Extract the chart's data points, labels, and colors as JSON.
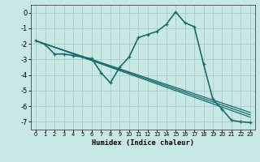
{
  "xlabel": "Humidex (Indice chaleur)",
  "background_color": "#c8e8e6",
  "line_color": "#1a6b6b",
  "xlim": [
    -0.5,
    23.5
  ],
  "ylim": [
    -7.5,
    0.5
  ],
  "xticks": [
    0,
    1,
    2,
    3,
    4,
    5,
    6,
    7,
    8,
    9,
    10,
    11,
    12,
    13,
    14,
    15,
    16,
    17,
    18,
    19,
    20,
    21,
    22,
    23
  ],
  "yticks": [
    0,
    -1,
    -2,
    -3,
    -4,
    -5,
    -6,
    -7
  ],
  "grid_color": "#a8ccca",
  "zigzag_x": [
    0,
    1,
    2,
    3,
    4,
    5,
    6,
    7,
    8,
    9,
    10,
    11,
    12,
    13,
    14,
    15,
    16,
    17,
    18,
    19,
    20,
    21,
    22,
    23
  ],
  "zigzag_y": [
    -1.8,
    -2.05,
    -2.65,
    -2.65,
    -2.75,
    -2.85,
    -2.95,
    -3.85,
    -4.5,
    -3.5,
    -2.85,
    -1.6,
    -1.4,
    -1.2,
    -0.75,
    0.05,
    -0.65,
    -0.9,
    -3.3,
    -5.55,
    -6.2,
    -6.9,
    -7.0,
    -7.05
  ],
  "straight_lines": [
    {
      "x0": 0,
      "y0": -1.8,
      "x1": 23,
      "y1": -6.4
    },
    {
      "x0": 0,
      "y0": -1.8,
      "x1": 23,
      "y1": -6.55
    },
    {
      "x0": 0,
      "y0": -1.8,
      "x1": 23,
      "y1": -6.7
    }
  ]
}
